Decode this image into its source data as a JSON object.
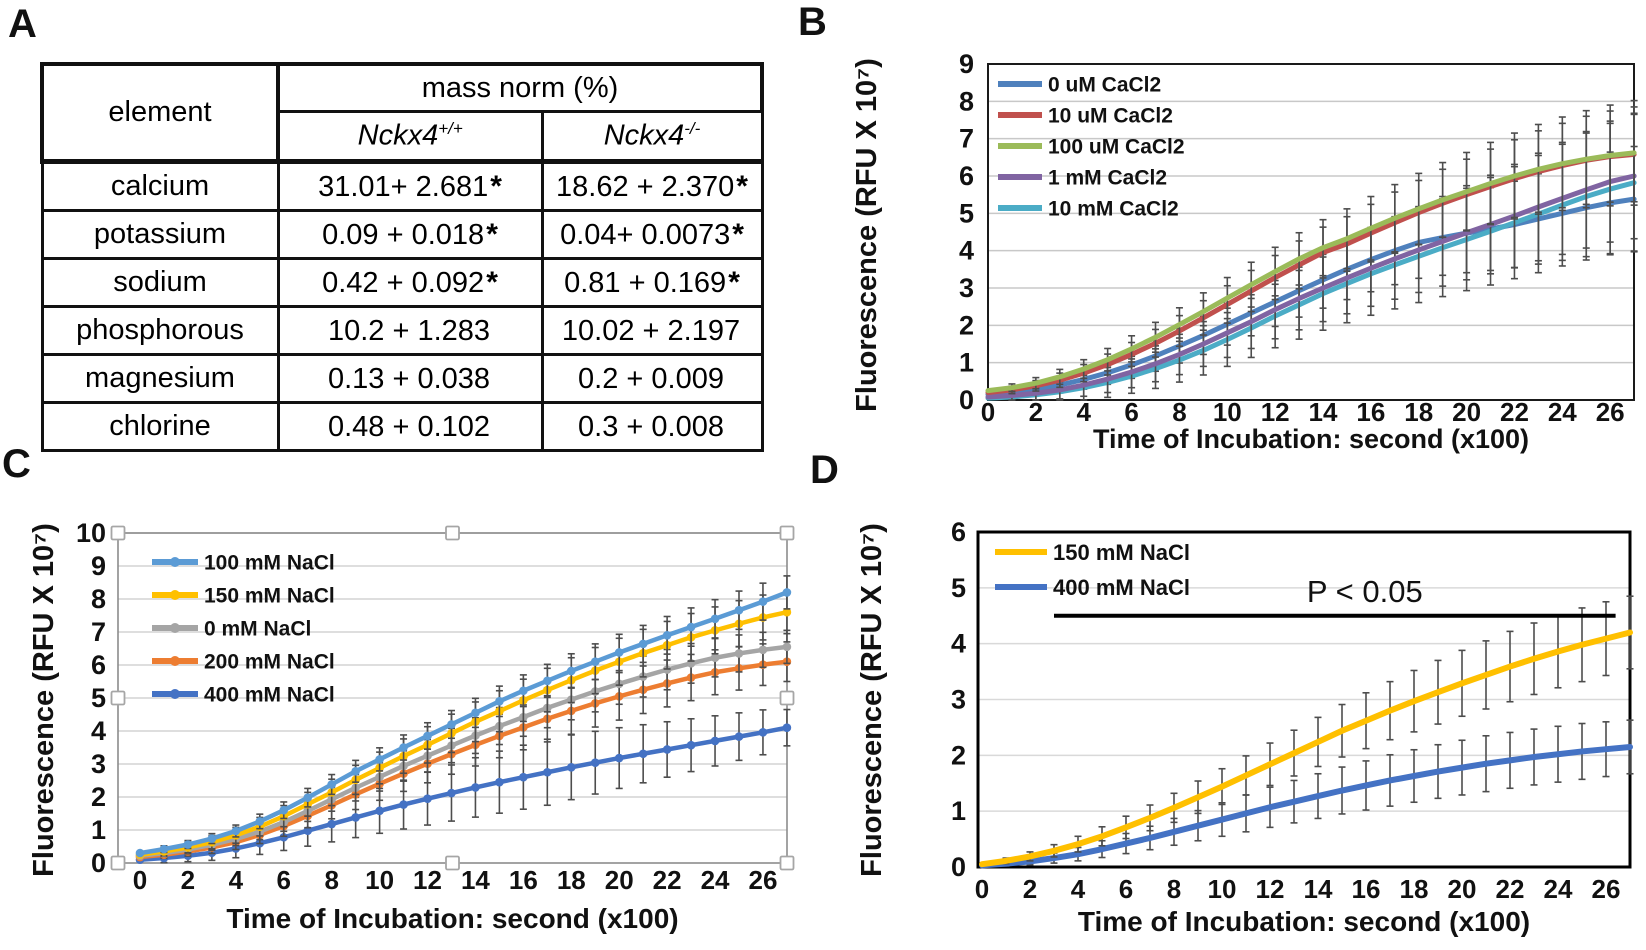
{
  "panel_labels": {
    "A": "A",
    "B": "B",
    "C": "C",
    "D": "D"
  },
  "table": {
    "header_element": "element",
    "header_group": "mass norm (%)",
    "col_wt": {
      "base": "Nckx4",
      "sup": "+/+"
    },
    "col_ko": {
      "base": "Nckx4",
      "sup": "-/-"
    },
    "rows": [
      {
        "element": "calcium",
        "wt": "31.01+ 2.681",
        "wt_mark": "*",
        "ko": "18.62 + 2.370",
        "ko_mark": "*"
      },
      {
        "element": "potassium",
        "wt": "0.09 + 0.018",
        "wt_mark": "*",
        "ko": "0.04+ 0.0073",
        "ko_mark": "*"
      },
      {
        "element": "sodium",
        "wt": "0.42 + 0.092",
        "wt_mark": "*",
        "ko": "0.81 + 0.169",
        "ko_mark": "*"
      },
      {
        "element": "phosphorous",
        "wt": "10.2 + 1.283",
        "wt_mark": "",
        "ko": "10.02 + 2.197",
        "ko_mark": ""
      },
      {
        "element": "magnesium",
        "wt": "0.13 + 0.038",
        "wt_mark": "",
        "ko": "0.2 + 0.009",
        "ko_mark": ""
      },
      {
        "element": "chlorine",
        "wt": "0.48 + 0.102",
        "wt_mark": "",
        "ko": "0.3 + 0.008",
        "ko_mark": ""
      }
    ]
  },
  "chart_data": [
    {
      "id": "B",
      "type": "line",
      "title": "",
      "xlabel": "Time of Incubation: second (x100)",
      "ylabel": "Fluorescence (RFU X 10⁷)",
      "xlim": [
        0,
        27
      ],
      "ylim": [
        0,
        9
      ],
      "x_ticks": [
        0,
        2,
        4,
        6,
        8,
        10,
        12,
        14,
        16,
        18,
        20,
        22,
        24,
        26
      ],
      "y_ticks": [
        0,
        1,
        2,
        3,
        4,
        5,
        6,
        7,
        8,
        9
      ],
      "grid": true,
      "legend_position": "top-left-inside",
      "markers": false,
      "x": [
        0,
        1,
        2,
        3,
        4,
        5,
        6,
        7,
        8,
        9,
        10,
        11,
        12,
        13,
        14,
        15,
        16,
        17,
        18,
        19,
        20,
        21,
        22,
        23,
        24,
        25,
        26,
        27
      ],
      "series": [
        {
          "name": "0 uM CaCl2",
          "color": "#4F81BD",
          "values": [
            0.15,
            0.2,
            0.28,
            0.4,
            0.55,
            0.73,
            0.94,
            1.18,
            1.45,
            1.73,
            2.03,
            2.33,
            2.63,
            2.93,
            3.22,
            3.5,
            3.76,
            4.0,
            4.22,
            4.35,
            4.47,
            4.58,
            4.7,
            4.85,
            5.0,
            5.15,
            5.28,
            5.38
          ],
          "err": [
            0.06,
            0.11,
            0.16,
            0.21,
            0.26,
            0.31,
            0.36,
            0.41,
            0.46,
            0.51,
            0.56,
            0.61,
            0.66,
            0.71,
            0.76,
            0.81,
            0.86,
            0.91,
            0.96,
            1.01,
            1.06,
            1.11,
            1.16,
            1.21,
            1.26,
            1.31,
            1.36,
            1.41
          ]
        },
        {
          "name": "10 uM CaCl2",
          "color": "#C0504D",
          "values": [
            0.2,
            0.27,
            0.38,
            0.53,
            0.72,
            0.95,
            1.22,
            1.52,
            1.85,
            2.2,
            2.56,
            2.92,
            3.28,
            3.62,
            3.95,
            4.18,
            4.47,
            4.75,
            5.02,
            5.27,
            5.5,
            5.72,
            5.93,
            6.12,
            6.28,
            6.42,
            6.52,
            6.58
          ],
          "err": [
            0.05,
            0.1,
            0.14,
            0.19,
            0.23,
            0.28,
            0.32,
            0.37,
            0.41,
            0.46,
            0.5,
            0.55,
            0.59,
            0.64,
            0.68,
            0.73,
            0.77,
            0.82,
            0.86,
            0.91,
            0.95,
            1.0,
            1.04,
            1.09,
            1.13,
            1.18,
            1.22,
            1.27
          ]
        },
        {
          "name": "100 uM CaCl2",
          "color": "#9BBB59",
          "values": [
            0.25,
            0.33,
            0.45,
            0.62,
            0.83,
            1.08,
            1.37,
            1.68,
            2.02,
            2.37,
            2.73,
            3.09,
            3.44,
            3.78,
            4.08,
            4.32,
            4.6,
            4.87,
            5.12,
            5.36,
            5.58,
            5.8,
            6.0,
            6.18,
            6.33,
            6.45,
            6.55,
            6.62
          ],
          "err": [
            0.05,
            0.1,
            0.15,
            0.2,
            0.25,
            0.3,
            0.35,
            0.4,
            0.45,
            0.5,
            0.55,
            0.6,
            0.65,
            0.7,
            0.75,
            0.8,
            0.85,
            0.9,
            0.95,
            1.0,
            1.05,
            1.1,
            1.15,
            1.2,
            1.25,
            1.3,
            1.35,
            1.4
          ]
        },
        {
          "name": "1 mM CaCl2",
          "color": "#8064A2",
          "values": [
            0.08,
            0.12,
            0.18,
            0.27,
            0.4,
            0.56,
            0.75,
            0.97,
            1.22,
            1.5,
            1.8,
            2.1,
            2.42,
            2.72,
            3.0,
            3.27,
            3.53,
            3.78,
            4.02,
            4.25,
            4.48,
            4.7,
            4.93,
            5.17,
            5.4,
            5.63,
            5.85,
            6.0
          ],
          "err": [
            0.06,
            0.12,
            0.18,
            0.24,
            0.3,
            0.36,
            0.42,
            0.48,
            0.54,
            0.6,
            0.66,
            0.72,
            0.78,
            0.84,
            0.9,
            0.96,
            1.02,
            1.08,
            1.14,
            1.2,
            1.26,
            1.32,
            1.38,
            1.44,
            1.5,
            1.56,
            1.62,
            1.68
          ]
        },
        {
          "name": "10 mM CaCl2",
          "color": "#4BACC6",
          "values": [
            0.05,
            0.08,
            0.14,
            0.22,
            0.33,
            0.47,
            0.64,
            0.84,
            1.07,
            1.33,
            1.62,
            1.93,
            2.25,
            2.55,
            2.85,
            3.12,
            3.38,
            3.62,
            3.85,
            4.08,
            4.3,
            4.52,
            4.75,
            4.98,
            5.22,
            5.45,
            5.65,
            5.82
          ],
          "err": [
            0.07,
            0.14,
            0.2,
            0.27,
            0.33,
            0.4,
            0.46,
            0.53,
            0.59,
            0.66,
            0.72,
            0.79,
            0.85,
            0.92,
            0.98,
            1.05,
            1.11,
            1.18,
            1.24,
            1.31,
            1.37,
            1.44,
            1.5,
            1.57,
            1.63,
            1.7,
            1.76,
            1.83
          ]
        }
      ]
    },
    {
      "id": "C",
      "type": "line",
      "title": "",
      "xlabel": "Time of Incubation: second (x100)",
      "ylabel": "Fluorescence (RFU X 10⁷)",
      "xlim": [
        0,
        27
      ],
      "ylim": [
        0,
        10
      ],
      "x_ticks": [
        0,
        2,
        4,
        6,
        8,
        10,
        12,
        14,
        16,
        18,
        20,
        22,
        24,
        26
      ],
      "y_ticks": [
        0,
        1,
        2,
        3,
        4,
        5,
        6,
        7,
        8,
        9,
        10
      ],
      "grid": true,
      "legend_position": "top-left-inside",
      "markers": true,
      "selected": true,
      "x": [
        0,
        1,
        2,
        3,
        4,
        5,
        6,
        7,
        8,
        9,
        10,
        11,
        12,
        13,
        14,
        15,
        16,
        17,
        18,
        19,
        20,
        21,
        22,
        23,
        24,
        25,
        26,
        27
      ],
      "series": [
        {
          "name": "100  mM NaCl",
          "color": "#5B9BD5",
          "values": [
            0.3,
            0.42,
            0.56,
            0.74,
            0.97,
            1.26,
            1.6,
            1.98,
            2.38,
            2.78,
            3.14,
            3.5,
            3.85,
            4.2,
            4.55,
            4.9,
            5.22,
            5.52,
            5.82,
            6.1,
            6.38,
            6.64,
            6.9,
            7.15,
            7.4,
            7.66,
            7.92,
            8.2
          ],
          "err": [
            0.08,
            0.1,
            0.12,
            0.15,
            0.18,
            0.22,
            0.25,
            0.28,
            0.3,
            0.33,
            0.35,
            0.38,
            0.4,
            0.42,
            0.44,
            0.46,
            0.48,
            0.5,
            0.52,
            0.54,
            0.55,
            0.56,
            0.57,
            0.58,
            0.58,
            0.58,
            0.56,
            0.5
          ]
        },
        {
          "name": "150 mM NaCl",
          "color": "#FFC000",
          "values": [
            0.25,
            0.35,
            0.47,
            0.63,
            0.84,
            1.1,
            1.42,
            1.78,
            2.14,
            2.52,
            2.88,
            3.24,
            3.58,
            3.93,
            4.28,
            4.6,
            4.93,
            5.24,
            5.54,
            5.83,
            6.1,
            6.36,
            6.6,
            6.84,
            7.05,
            7.25,
            7.44,
            7.6
          ],
          "err": [
            0.1,
            0.13,
            0.16,
            0.2,
            0.24,
            0.28,
            0.32,
            0.36,
            0.4,
            0.44,
            0.48,
            0.52,
            0.55,
            0.58,
            0.6,
            0.62,
            0.64,
            0.66,
            0.68,
            0.7,
            0.71,
            0.72,
            0.72,
            0.72,
            0.71,
            0.7,
            0.68,
            0.65
          ]
        },
        {
          "name": "0  mM NaCl",
          "color": "#A5A5A5",
          "values": [
            0.22,
            0.3,
            0.41,
            0.55,
            0.73,
            0.95,
            1.24,
            1.58,
            1.93,
            2.28,
            2.61,
            2.94,
            3.25,
            3.56,
            3.86,
            4.15,
            4.42,
            4.7,
            4.95,
            5.2,
            5.43,
            5.65,
            5.86,
            6.05,
            6.22,
            6.35,
            6.46,
            6.55
          ],
          "err": [
            0.08,
            0.1,
            0.13,
            0.16,
            0.2,
            0.24,
            0.28,
            0.32,
            0.36,
            0.4,
            0.43,
            0.46,
            0.49,
            0.52,
            0.54,
            0.56,
            0.58,
            0.6,
            0.61,
            0.62,
            0.62,
            0.62,
            0.61,
            0.6,
            0.58,
            0.56,
            0.53,
            0.5
          ]
        },
        {
          "name": "200 mM NaCl",
          "color": "#ED7D31",
          "values": [
            0.18,
            0.25,
            0.35,
            0.47,
            0.63,
            0.85,
            1.12,
            1.43,
            1.75,
            2.08,
            2.4,
            2.71,
            3.01,
            3.3,
            3.58,
            3.85,
            4.11,
            4.37,
            4.61,
            4.84,
            5.05,
            5.25,
            5.44,
            5.62,
            5.78,
            5.9,
            6.01,
            6.1
          ],
          "err": [
            0.08,
            0.11,
            0.14,
            0.18,
            0.22,
            0.26,
            0.31,
            0.36,
            0.41,
            0.46,
            0.5,
            0.54,
            0.58,
            0.61,
            0.64,
            0.66,
            0.68,
            0.7,
            0.71,
            0.72,
            0.72,
            0.72,
            0.71,
            0.7,
            0.68,
            0.66,
            0.63,
            0.6
          ]
        },
        {
          "name": "400 mM NaCl",
          "color": "#4472C4",
          "values": [
            0.1,
            0.15,
            0.22,
            0.31,
            0.44,
            0.6,
            0.78,
            0.98,
            1.18,
            1.38,
            1.58,
            1.77,
            1.95,
            2.12,
            2.29,
            2.45,
            2.6,
            2.75,
            2.9,
            3.04,
            3.18,
            3.31,
            3.44,
            3.57,
            3.7,
            3.83,
            3.96,
            4.1
          ],
          "err": [
            0.1,
            0.14,
            0.18,
            0.23,
            0.28,
            0.34,
            0.4,
            0.47,
            0.54,
            0.61,
            0.68,
            0.74,
            0.8,
            0.85,
            0.9,
            0.94,
            0.97,
            1.0,
            0.98,
            0.95,
            0.92,
            0.88,
            0.84,
            0.8,
            0.76,
            0.72,
            0.68,
            0.55
          ]
        }
      ]
    },
    {
      "id": "D",
      "type": "line",
      "title": "",
      "xlabel": "Time of Incubation: second (x100)",
      "ylabel": "Fluorescence (RFU X 10⁷)",
      "xlim": [
        0,
        27
      ],
      "ylim": [
        0,
        6
      ],
      "x_ticks": [
        0,
        2,
        4,
        6,
        8,
        10,
        12,
        14,
        16,
        18,
        20,
        22,
        24,
        26
      ],
      "y_ticks": [
        0,
        1,
        2,
        3,
        4,
        5,
        6
      ],
      "grid": true,
      "legend_position": "top-left-inside",
      "markers": false,
      "annotation": {
        "text": "P < 0.05",
        "y": 4.5,
        "x1": 3,
        "x2": 26.4
      },
      "x": [
        0,
        1,
        2,
        3,
        4,
        5,
        6,
        7,
        8,
        9,
        10,
        11,
        12,
        13,
        14,
        15,
        16,
        17,
        18,
        19,
        20,
        21,
        22,
        23,
        24,
        25,
        26,
        27
      ],
      "series": [
        {
          "name": "150 mM NaCl",
          "color": "#FFC000",
          "values": [
            0.05,
            0.11,
            0.19,
            0.29,
            0.41,
            0.55,
            0.71,
            0.88,
            1.06,
            1.25,
            1.44,
            1.64,
            1.84,
            2.04,
            2.24,
            2.44,
            2.62,
            2.8,
            2.97,
            3.13,
            3.29,
            3.44,
            3.59,
            3.73,
            3.86,
            3.98,
            4.09,
            4.2
          ],
          "err": [
            0.03,
            0.05,
            0.08,
            0.11,
            0.14,
            0.17,
            0.2,
            0.23,
            0.26,
            0.29,
            0.32,
            0.35,
            0.38,
            0.41,
            0.44,
            0.47,
            0.5,
            0.52,
            0.55,
            0.57,
            0.59,
            0.61,
            0.63,
            0.64,
            0.65,
            0.66,
            0.66,
            0.65
          ]
        },
        {
          "name": "400 mM NaCl",
          "color": "#4472C4",
          "values": [
            0.03,
            0.06,
            0.1,
            0.16,
            0.23,
            0.32,
            0.42,
            0.52,
            0.63,
            0.74,
            0.85,
            0.96,
            1.07,
            1.17,
            1.27,
            1.37,
            1.46,
            1.55,
            1.63,
            1.71,
            1.78,
            1.85,
            1.91,
            1.97,
            2.02,
            2.07,
            2.11,
            2.15
          ],
          "err": [
            0.02,
            0.04,
            0.06,
            0.09,
            0.12,
            0.15,
            0.18,
            0.21,
            0.24,
            0.27,
            0.3,
            0.33,
            0.36,
            0.38,
            0.4,
            0.42,
            0.44,
            0.46,
            0.47,
            0.48,
            0.49,
            0.5,
            0.5,
            0.5,
            0.5,
            0.5,
            0.49,
            0.48
          ]
        }
      ]
    }
  ],
  "style_colors": {
    "error_bar": "#4d4d4d",
    "gridline": "#d4d4d4",
    "selection_handle_border": "#a6a6a6",
    "significance_line": "#000000"
  }
}
